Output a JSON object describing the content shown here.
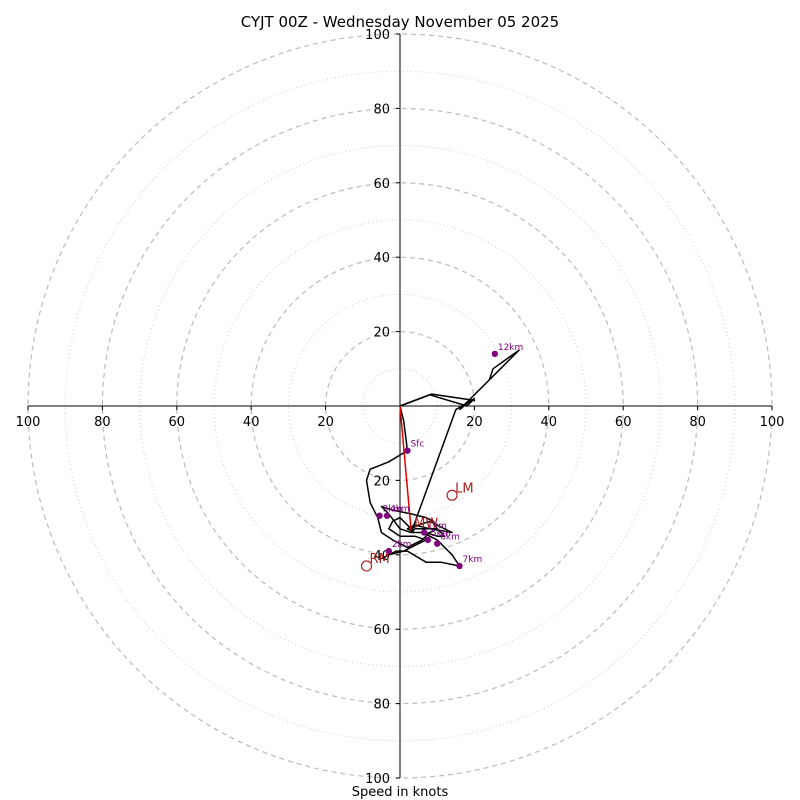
{
  "title": "CYJT 00Z - Wednesday November 05 2025",
  "xlabel": "Speed in knots",
  "colors": {
    "hodograph": "#000000",
    "height_marker": "#800080",
    "storm_motion": "#b22222",
    "mean_wind_vector": "#e00000",
    "ring_major": "#bbbbbb",
    "ring_minor": "#cccccc",
    "axis": "#000000"
  },
  "chart_data": {
    "type": "hodograph",
    "title": "CYJT 00Z - Wednesday November 05 2025",
    "xlabel": "Speed in knots",
    "units": "knots",
    "range": 100,
    "major_rings": [
      20,
      40,
      60,
      80,
      100
    ],
    "minor_rings": [
      10,
      30,
      50,
      70,
      90
    ],
    "tick_labels": {
      "x_negative": [
        "100",
        "80",
        "60",
        "40",
        "20"
      ],
      "x_positive": [
        "20",
        "40",
        "60",
        "80",
        "100"
      ],
      "y_positive": [
        "100",
        "80",
        "60",
        "40",
        "20"
      ],
      "y_negative": [
        "20",
        "40",
        "60",
        "80",
        "100"
      ]
    },
    "hodograph": [
      [
        0,
        0
      ],
      [
        1,
        -4
      ],
      [
        1.5,
        -8
      ],
      [
        2,
        -12
      ],
      [
        -3,
        -15
      ],
      [
        -8,
        -17
      ],
      [
        -9,
        -20
      ],
      [
        -8,
        -26
      ],
      [
        -6,
        -30
      ],
      [
        -5,
        -34
      ],
      [
        -2,
        -36
      ],
      [
        2,
        -38
      ],
      [
        4,
        -37
      ],
      [
        6,
        -36
      ],
      [
        8,
        -34
      ],
      [
        10,
        -33
      ],
      [
        9,
        -31
      ],
      [
        7,
        -30
      ],
      [
        3,
        -29
      ],
      [
        -2,
        -28
      ],
      [
        -5,
        -27
      ],
      [
        -3,
        -29
      ],
      [
        0,
        -33
      ],
      [
        3,
        -34
      ],
      [
        6,
        -34
      ],
      [
        8,
        -35
      ],
      [
        10,
        -36
      ],
      [
        11,
        -37
      ],
      [
        14,
        -40
      ],
      [
        16,
        -43
      ],
      [
        11,
        -42
      ],
      [
        7,
        -42
      ],
      [
        2,
        -39
      ],
      [
        -1,
        -39
      ],
      [
        -5,
        -41
      ],
      [
        -3,
        -40
      ],
      [
        1,
        -39
      ],
      [
        5,
        -37
      ],
      [
        7,
        -36
      ],
      [
        4,
        -35
      ],
      [
        0,
        -35
      ],
      [
        -3,
        -33
      ],
      [
        -2,
        -31
      ],
      [
        0,
        -30
      ],
      [
        3,
        -33
      ],
      [
        5,
        -32
      ],
      [
        8,
        -31
      ],
      [
        12,
        -33
      ],
      [
        14,
        -34
      ],
      [
        8,
        -33
      ],
      [
        4,
        -32
      ],
      [
        2,
        -33
      ],
      [
        4,
        -34
      ],
      [
        7,
        -34
      ],
      [
        10,
        -35
      ],
      [
        12,
        -35
      ],
      [
        10,
        -33
      ],
      [
        7,
        -33
      ],
      [
        4,
        -33
      ],
      [
        3,
        -34
      ],
      [
        15,
        -1
      ],
      [
        20,
        2
      ],
      [
        18,
        0
      ],
      [
        8,
        3
      ],
      [
        0,
        0
      ]
    ],
    "hodograph_tail": [
      [
        16,
        -1
      ],
      [
        19,
        1.5
      ],
      [
        20,
        1.5
      ],
      [
        8.5,
        3.2
      ],
      [
        0,
        0
      ]
    ],
    "upper_segment": [
      [
        16,
        -1
      ],
      [
        32,
        15
      ],
      [
        24,
        7
      ],
      [
        25,
        10
      ],
      [
        32,
        15
      ]
    ],
    "height_markers": [
      {
        "label": "Sfc",
        "u": 2,
        "v": -12
      },
      {
        "label": "1km",
        "u": 6.5,
        "v": -34
      },
      {
        "label": "2km",
        "u": -3,
        "v": -39
      },
      {
        "label": "3km",
        "u": -5.5,
        "v": -29.5
      },
      {
        "label": "4km",
        "u": -3.5,
        "v": -29.5
      },
      {
        "label": "5km",
        "u": 7.5,
        "v": -36
      },
      {
        "label": "6km",
        "u": 10,
        "v": -37
      },
      {
        "label": "7km",
        "u": 16,
        "v": -43
      },
      {
        "label": "12km",
        "u": 25.5,
        "v": 14
      }
    ],
    "storm_motion": [
      {
        "label": "LM",
        "u": 14,
        "v": -24
      },
      {
        "label": "RM",
        "u": -9,
        "v": -43
      },
      {
        "label": "MW",
        "u": 3,
        "v": -33.5
      }
    ],
    "mean_wind_vector": {
      "from": [
        0,
        0
      ],
      "to": [
        3,
        -33.5
      ]
    }
  }
}
